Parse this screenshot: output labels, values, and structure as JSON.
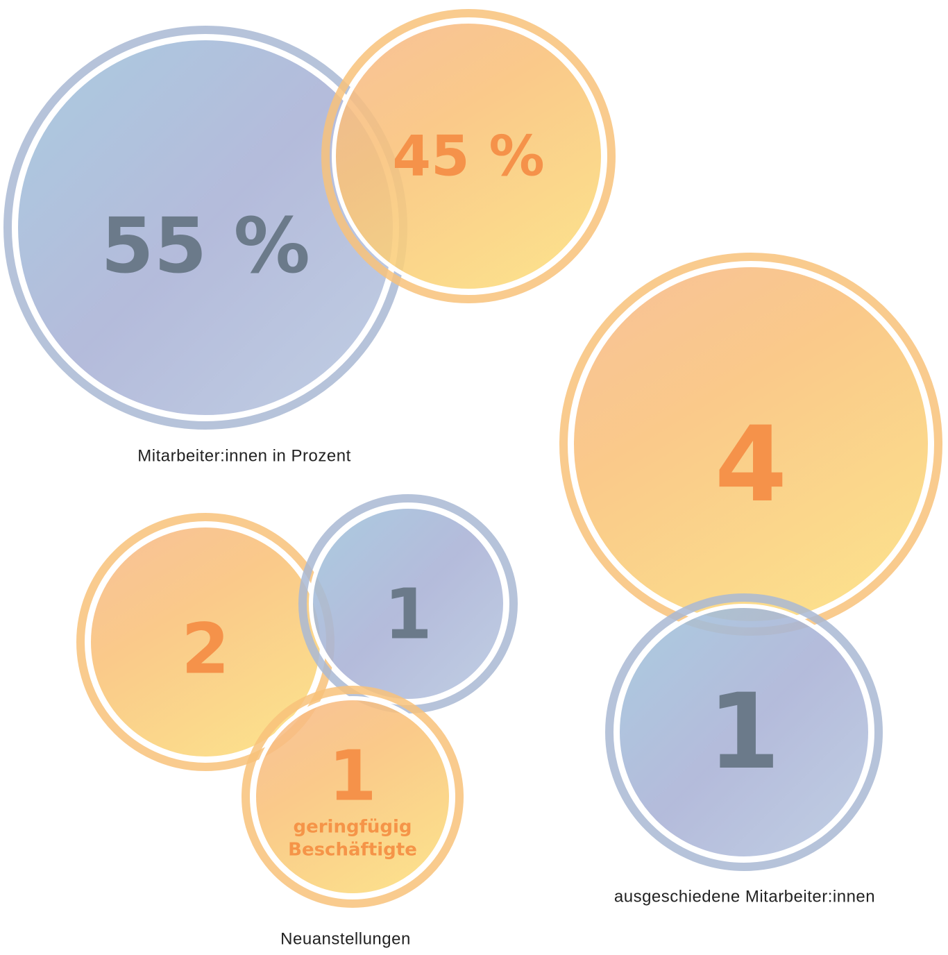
{
  "groups": [
    {
      "label": "Mitarbeiter:innen in Prozent",
      "circles": [
        {
          "value": "55 %"
        },
        {
          "value": "45 %"
        }
      ]
    },
    {
      "label": "ausgeschiedene Mitarbeiter:innen",
      "circles": [
        {
          "value": "4"
        },
        {
          "value": "1"
        }
      ]
    },
    {
      "label": "Neuanstellungen",
      "circles": [
        {
          "value": "2"
        },
        {
          "value": "1"
        },
        {
          "value": "1",
          "note": [
            "geringfügig",
            "Beschäftigte"
          ]
        }
      ]
    }
  ]
}
